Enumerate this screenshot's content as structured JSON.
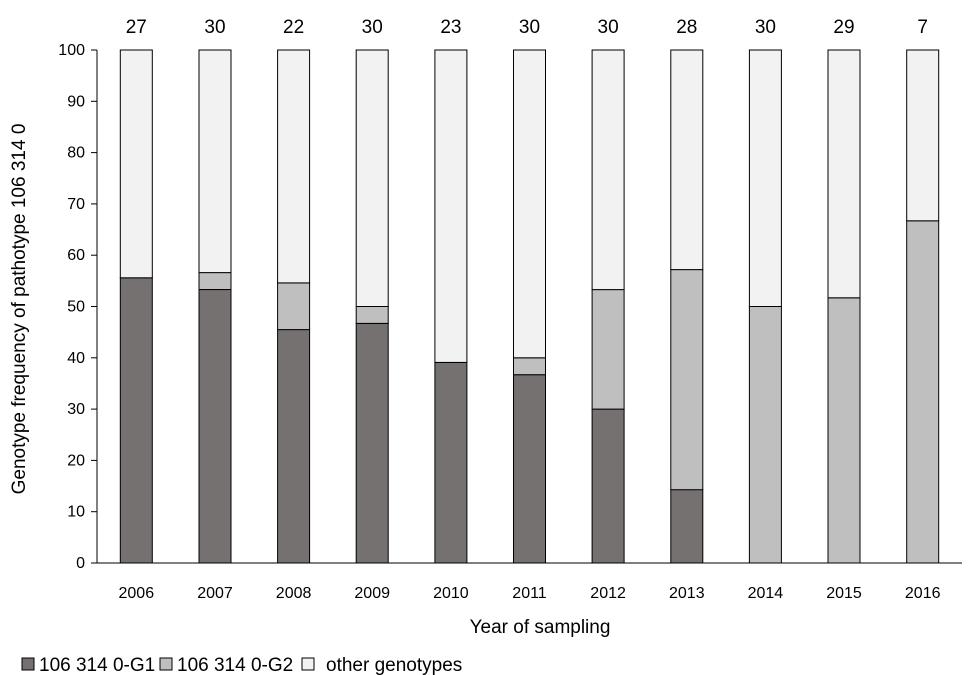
{
  "chart_data": {
    "type": "bar",
    "stacked": true,
    "percent_stacked": true,
    "title": "",
    "xlabel": "Year of sampling",
    "ylabel": "Genotype frequency of pathotype 106 314 0",
    "ylim": [
      0,
      100
    ],
    "yticks": [
      0,
      10,
      20,
      30,
      40,
      50,
      60,
      70,
      80,
      90,
      100
    ],
    "categories": [
      "2006",
      "2007",
      "2008",
      "2009",
      "2010",
      "2011",
      "2012",
      "2013",
      "2014",
      "2015",
      "2016"
    ],
    "sample_sizes": [
      "27",
      "30",
      "22",
      "30",
      "23",
      "30",
      "30",
      "28",
      "30",
      "29",
      "7"
    ],
    "series": [
      {
        "name": "106 314 0-G1",
        "color": "#767171",
        "values": [
          55.6,
          53.3,
          45.5,
          46.7,
          39.1,
          36.7,
          30.0,
          14.3,
          0,
          0,
          0
        ]
      },
      {
        "name": "106 314 0-G2",
        "color": "#bfbfbf",
        "values": [
          0,
          3.3,
          9.1,
          3.3,
          0,
          3.3,
          23.3,
          42.9,
          50.0,
          51.7,
          66.7
        ]
      },
      {
        "name": "other genotypes",
        "color": "#f2f2f2",
        "values": [
          44.4,
          43.4,
          45.4,
          50.0,
          60.9,
          60.0,
          46.7,
          42.8,
          50.0,
          48.3,
          33.3
        ]
      }
    ],
    "grid": false,
    "legend_position": "bottom-left"
  }
}
